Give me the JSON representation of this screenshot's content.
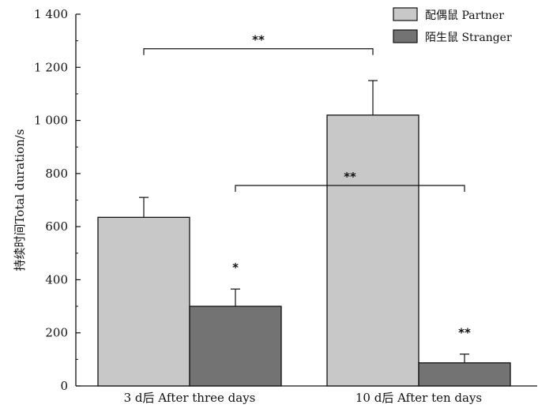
{
  "chart_data": {
    "type": "bar",
    "title": "",
    "xlabel": "",
    "ylabel": "持续时间Total duration/s",
    "ylim": [
      0,
      1400
    ],
    "yticks": [
      0,
      200,
      400,
      600,
      800,
      1000,
      1200,
      1400
    ],
    "ytick_labels": [
      "0",
      "200",
      "400",
      "600",
      "800",
      "1 000",
      "1 200",
      "1 400"
    ],
    "categories": [
      "3 d后 After three days",
      "10 d后 After ten days"
    ],
    "series": [
      {
        "name": "配偶鼠 Partner",
        "color": "#c8c8c8",
        "values": [
          635,
          1020
        ],
        "errors": [
          75,
          130
        ]
      },
      {
        "name": "陌生鼠 Stranger",
        "color": "#737373",
        "values": [
          300,
          87
        ],
        "errors": [
          65,
          33
        ]
      }
    ],
    "bar_labels": [
      {
        "category": 0,
        "series": 1,
        "text": "*"
      },
      {
        "category": 1,
        "series": 1,
        "text": "**"
      }
    ],
    "comparisons": [
      {
        "from": {
          "category": 0,
          "series": 0
        },
        "to": {
          "category": 1,
          "series": 0
        },
        "level": 1270,
        "text": "**"
      },
      {
        "from": {
          "category": 0,
          "series": 1
        },
        "to": {
          "category": 1,
          "series": 1
        },
        "level": 755,
        "text": "**"
      }
    ],
    "legend": {
      "position": "top-right",
      "entries": [
        "配偶鼠 Partner",
        "陌生鼠 Stranger"
      ]
    }
  }
}
